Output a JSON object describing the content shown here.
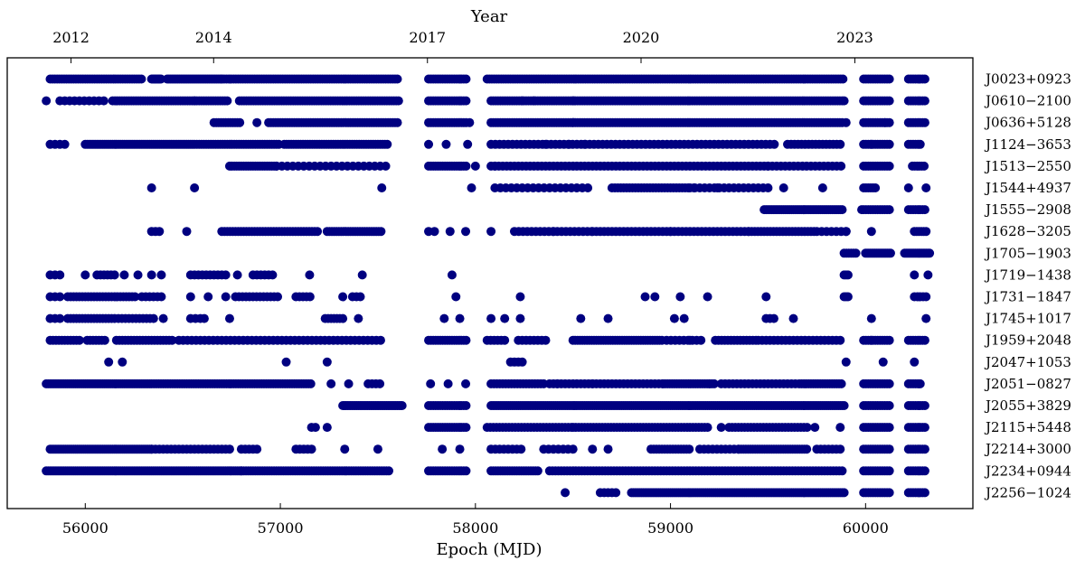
{
  "chart_data": {
    "type": "scatter",
    "xlabel": "Epoch (MJD)",
    "top_xlabel": "Year",
    "xlim": [
      55600,
      60550
    ],
    "x_ticks": [
      56000,
      57000,
      58000,
      59000,
      60000
    ],
    "top_ticks": [
      {
        "label": "2012",
        "mjd": 55927
      },
      {
        "label": "2014",
        "mjd": 56658
      },
      {
        "label": "2017",
        "mjd": 57754
      },
      {
        "label": "2020",
        "mjd": 58849
      },
      {
        "label": "2023",
        "mjd": 59945
      }
    ],
    "marker_color": "#000080",
    "grid": false,
    "series": [
      {
        "name": "J0023+0923",
        "segments": [
          [
            55820,
            56290,
            12
          ],
          [
            56340,
            56390,
            6
          ],
          [
            56420,
            56700,
            9
          ],
          [
            56700,
            57610,
            12
          ],
          [
            57760,
            57960,
            12
          ],
          [
            58060,
            59890,
            12
          ],
          [
            59990,
            60130,
            12
          ],
          [
            60220,
            60310,
            12
          ]
        ],
        "points": []
      },
      {
        "name": "J0610-2100",
        "segments": [
          [
            55870,
            56100,
            25
          ],
          [
            56140,
            56730,
            12
          ],
          [
            56790,
            57610,
            12
          ],
          [
            57760,
            57960,
            12
          ],
          [
            58080,
            59890,
            12
          ],
          [
            59990,
            60130,
            12
          ],
          [
            60220,
            60310,
            12
          ]
        ],
        "points": [
          55800,
          56560,
          58240,
          58300,
          58500,
          59890
        ]
      },
      {
        "name": "J0636+5128",
        "segments": [
          [
            56660,
            56800,
            12
          ],
          [
            56940,
            57610,
            12
          ],
          [
            57760,
            57960,
            12
          ],
          [
            58080,
            59890,
            12
          ],
          [
            59990,
            60130,
            12
          ],
          [
            60220,
            60310,
            12
          ]
        ],
        "points": [
          56880,
          57970,
          58500,
          59900,
          60100
        ]
      },
      {
        "name": "J1124-3653",
        "segments": [
          [
            55820,
            55900,
            25
          ],
          [
            56000,
            56550,
            10
          ],
          [
            56560,
            57000,
            12
          ],
          [
            57020,
            57550,
            12
          ],
          [
            58080,
            59550,
            22
          ],
          [
            59600,
            59880,
            18
          ],
          [
            59990,
            60130,
            12
          ],
          [
            60220,
            60290,
            12
          ]
        ],
        "points": [
          57760,
          57850,
          57960,
          58360,
          58480,
          58560,
          60030
        ]
      },
      {
        "name": "J1513-2550",
        "segments": [
          [
            56740,
            56980,
            12
          ],
          [
            56980,
            57560,
            28
          ],
          [
            57760,
            57960,
            12
          ],
          [
            58080,
            59500,
            20
          ],
          [
            59500,
            59880,
            22
          ],
          [
            59990,
            60130,
            12
          ],
          [
            60240,
            60310,
            12
          ]
        ],
        "points": [
          58000,
          58100
        ]
      },
      {
        "name": "J1544+4937",
        "segments": [
          [
            58100,
            58600,
            28
          ],
          [
            58700,
            59100,
            15
          ],
          [
            59100,
            59500,
            25
          ],
          [
            59990,
            60060,
            12
          ]
        ],
        "points": [
          56340,
          56560,
          57520,
          57980,
          59120,
          59240,
          59580,
          59780,
          60220,
          60310
        ]
      },
      {
        "name": "J1555-2908",
        "segments": [
          [
            59480,
            59880,
            10
          ],
          [
            59990,
            60130,
            12
          ],
          [
            60220,
            60310,
            12
          ]
        ],
        "points": [
          59980
        ]
      },
      {
        "name": "J1628-3205",
        "segments": [
          [
            56340,
            56380,
            20
          ],
          [
            56700,
            57200,
            14
          ],
          [
            57240,
            57520,
            12
          ],
          [
            58200,
            58600,
            22
          ],
          [
            58600,
            59400,
            20
          ],
          [
            59400,
            59750,
            16
          ],
          [
            59750,
            59900,
            25
          ],
          [
            60250,
            60310,
            12
          ]
        ],
        "points": [
          56520,
          57760,
          57790,
          57870,
          57950,
          58080,
          58400,
          59000,
          59900,
          60030
        ]
      },
      {
        "name": "J1705-1903",
        "segments": [
          [
            59890,
            59960,
            12
          ],
          [
            60000,
            60130,
            8
          ],
          [
            60200,
            60330,
            8
          ]
        ],
        "points": []
      },
      {
        "name": "J1719-1438",
        "segments": [
          [
            55820,
            55880,
            25
          ],
          [
            56060,
            56150,
            18
          ],
          [
            56540,
            56720,
            20
          ],
          [
            56860,
            56970,
            20
          ],
          [
            59890,
            59910,
            10
          ]
        ],
        "points": [
          56000,
          56200,
          56270,
          56340,
          56390,
          56780,
          57150,
          57420,
          57880,
          60250,
          60320
        ]
      },
      {
        "name": "J1731-1847",
        "segments": [
          [
            55820,
            55870,
            25
          ],
          [
            55910,
            56260,
            15
          ],
          [
            56290,
            56400,
            20
          ],
          [
            56770,
            57000,
            18
          ],
          [
            57080,
            57160,
            18
          ],
          [
            57370,
            57420,
            20
          ],
          [
            59890,
            59910,
            10
          ],
          [
            60250,
            60320,
            15
          ]
        ],
        "points": [
          56540,
          56630,
          56720,
          57320,
          57900,
          58230,
          58870,
          58920,
          59050,
          59190,
          59490
        ]
      },
      {
        "name": "J1745+1017",
        "segments": [
          [
            55820,
            55870,
            25
          ],
          [
            55910,
            56150,
            15
          ],
          [
            56170,
            56350,
            18
          ],
          [
            56540,
            56600,
            25
          ],
          [
            57230,
            57320,
            15
          ],
          [
            59490,
            59540,
            20
          ]
        ],
        "points": [
          56400,
          56610,
          56740,
          57400,
          57840,
          57920,
          58080,
          58150,
          58230,
          58540,
          58680,
          59020,
          59070,
          59630,
          60030,
          60310
        ]
      },
      {
        "name": "J1959+2048",
        "segments": [
          [
            55820,
            55970,
            15
          ],
          [
            56010,
            56100,
            15
          ],
          [
            56160,
            56450,
            15
          ],
          [
            56480,
            57530,
            22
          ],
          [
            57760,
            57960,
            12
          ],
          [
            58060,
            58150,
            18
          ],
          [
            58220,
            58370,
            20
          ],
          [
            58500,
            58960,
            12
          ],
          [
            58980,
            59160,
            22
          ],
          [
            59230,
            59450,
            16
          ],
          [
            59450,
            59880,
            20
          ],
          [
            59990,
            60130,
            12
          ],
          [
            60220,
            60310,
            12
          ]
        ],
        "points": [
          59100,
          60030
        ]
      },
      {
        "name": "J2047+1053",
        "segments": [
          [
            58180,
            58240,
            20
          ]
        ],
        "points": [
          56120,
          56190,
          57030,
          57240,
          59900,
          60090,
          60250
        ]
      },
      {
        "name": "J2051-0827",
        "segments": [
          [
            55800,
            56330,
            10
          ],
          [
            56340,
            57160,
            12
          ],
          [
            57450,
            57520,
            20
          ],
          [
            58080,
            58350,
            15
          ],
          [
            58380,
            58960,
            20
          ],
          [
            58960,
            59230,
            12
          ],
          [
            59260,
            59650,
            20
          ],
          [
            59660,
            59880,
            12
          ],
          [
            59990,
            60130,
            12
          ],
          [
            60220,
            60290,
            12
          ]
        ],
        "points": [
          57260,
          57350,
          57770,
          57860,
          57950,
          58420,
          58600,
          59200
        ]
      },
      {
        "name": "J2055+3829",
        "segments": [
          [
            57320,
            57630,
            8
          ],
          [
            57760,
            57960,
            12
          ],
          [
            58080,
            59890,
            10
          ],
          [
            59990,
            60130,
            12
          ],
          [
            60220,
            60310,
            12
          ]
        ],
        "points": []
      },
      {
        "name": "J2115+5448",
        "segments": [
          [
            57760,
            57960,
            12
          ],
          [
            58060,
            58500,
            16
          ],
          [
            58500,
            59200,
            15
          ],
          [
            59300,
            59700,
            16
          ],
          [
            59990,
            60130,
            12
          ],
          [
            60220,
            60310,
            12
          ]
        ],
        "points": [
          57160,
          57180,
          57240,
          59260,
          59740,
          59870
        ]
      },
      {
        "name": "J2214+3000",
        "segments": [
          [
            55820,
            56340,
            10
          ],
          [
            56340,
            56750,
            20
          ],
          [
            56800,
            56880,
            20
          ],
          [
            57080,
            57160,
            20
          ],
          [
            58080,
            58250,
            22
          ],
          [
            58350,
            58500,
            25
          ],
          [
            58900,
            59100,
            14
          ],
          [
            59150,
            59350,
            22
          ],
          [
            59350,
            59700,
            12
          ],
          [
            59750,
            59880,
            20
          ],
          [
            59990,
            60130,
            12
          ],
          [
            60220,
            60310,
            12
          ]
        ],
        "points": [
          57330,
          57500,
          57830,
          57920,
          58600,
          58680
        ]
      },
      {
        "name": "J2234+0944",
        "segments": [
          [
            55800,
            56800,
            10
          ],
          [
            56800,
            57560,
            12
          ],
          [
            57760,
            57960,
            12
          ],
          [
            58080,
            58330,
            12
          ],
          [
            58380,
            59890,
            15
          ],
          [
            59990,
            60130,
            12
          ],
          [
            60220,
            60310,
            12
          ]
        ],
        "points": []
      },
      {
        "name": "J2256-1024",
        "segments": [
          [
            58640,
            58720,
            20
          ],
          [
            58800,
            59890,
            10
          ],
          [
            59990,
            60130,
            12
          ],
          [
            60220,
            60310,
            12
          ]
        ],
        "points": [
          58460
        ]
      }
    ]
  }
}
